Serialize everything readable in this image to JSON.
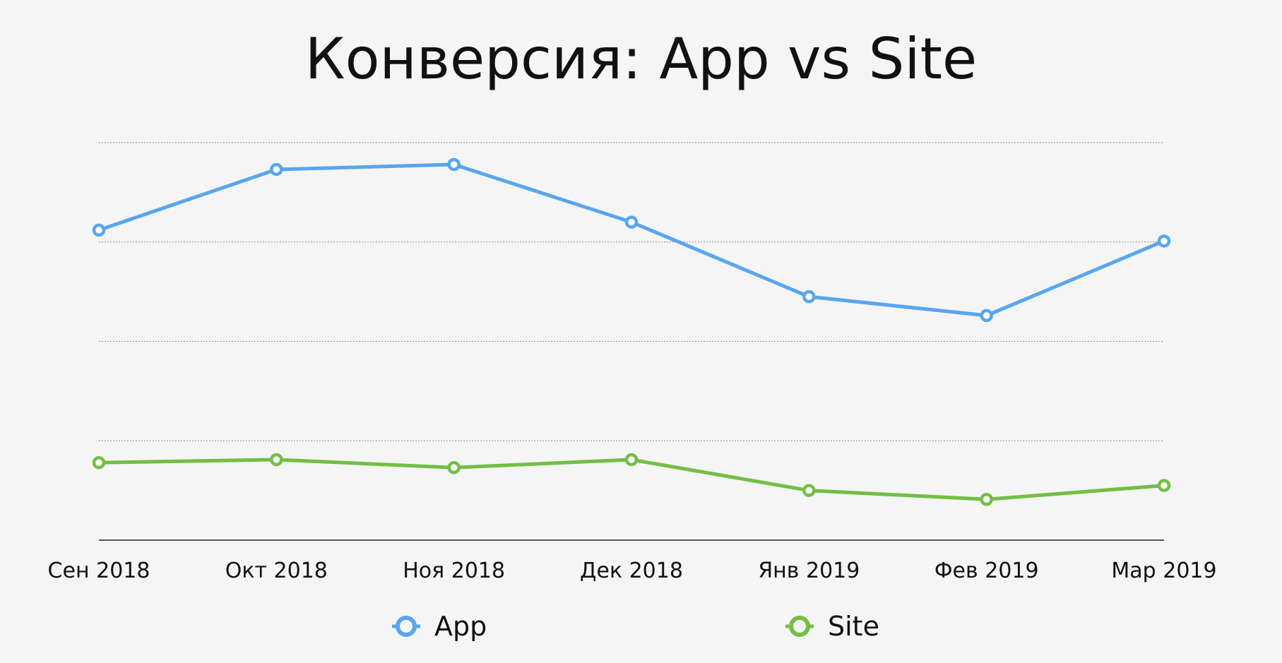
{
  "chart_data": {
    "type": "line",
    "title": "Конверсия: App vs Site",
    "xlabel": "",
    "ylabel": "",
    "categories": [
      "Сен 2018",
      "Окт 2018",
      "Ноя 2018",
      "Дек 2018",
      "Янв 2019",
      "Фев 2019",
      "Мар 2019"
    ],
    "series": [
      {
        "name": "App",
        "color": "#58a6ef",
        "values": [
          3.12,
          3.73,
          3.78,
          3.2,
          2.45,
          2.26,
          3.01
        ]
      },
      {
        "name": "Site",
        "color": "#72bf44",
        "values": [
          0.78,
          0.81,
          0.73,
          0.81,
          0.5,
          0.41,
          0.55
        ]
      }
    ],
    "ylim": [
      0,
      4
    ],
    "grid": true,
    "grid_style": "dotted",
    "legend": "bottom",
    "y_tick_labels_shown": false
  }
}
